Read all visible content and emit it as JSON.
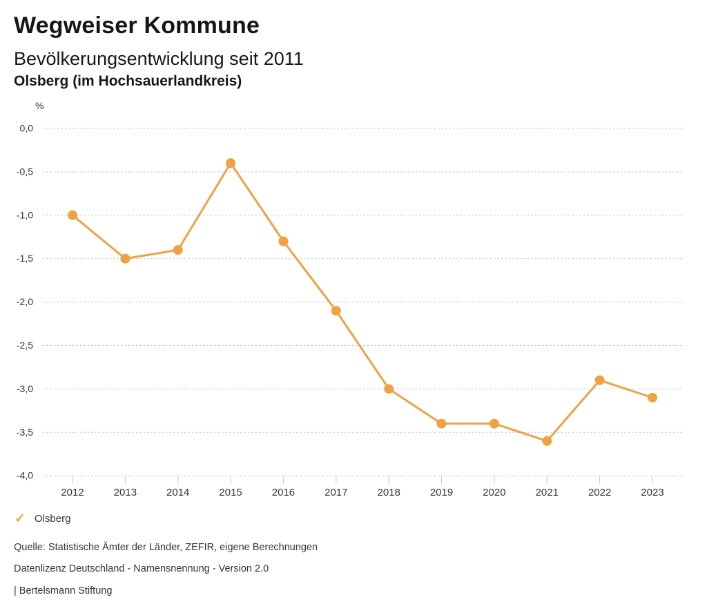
{
  "chart_data": {
    "type": "line",
    "title": "Wegweiser Kommune",
    "subtitle": "Bevölkerungsentwicklung seit 2011",
    "location": "Olsberg (im Hochsauerlandkreis)",
    "unit_label": "%",
    "categories": [
      "2012",
      "2013",
      "2014",
      "2015",
      "2016",
      "2017",
      "2018",
      "2019",
      "2020",
      "2021",
      "2022",
      "2023"
    ],
    "series": [
      {
        "name": "Olsberg",
        "color": "#F0A142",
        "values": [
          -1.0,
          -1.5,
          -1.4,
          -0.4,
          -1.3,
          -2.1,
          -3.0,
          -3.4,
          -3.4,
          -3.6,
          -2.9,
          -3.1
        ]
      }
    ],
    "ylim": [
      -4.0,
      0.0
    ],
    "ytick_step": 0.5,
    "ytick_labels": [
      "0,0",
      "-0,5",
      "-1,0",
      "-1,5",
      "-2,0",
      "-2,5",
      "-3,0",
      "-3,5",
      "-4,0"
    ],
    "grid": "horizontal-dotted",
    "legend_position": "bottom-left"
  },
  "legend": {
    "items": [
      {
        "label": "Olsberg",
        "marker": "check-icon",
        "color": "#F0A142"
      }
    ]
  },
  "footer": {
    "source": "Quelle: Statistische Ämter der Länder, ZEFIR, eigene Berechnungen",
    "license": "Datenlizenz Deutschland - Namensnennung - Version 2.0",
    "attribution": "| Bertelsmann Stiftung"
  },
  "colors": {
    "accent": "#F0A142",
    "grid": "#B8B8B8",
    "tick": "#C9C9C9",
    "text": "#333333"
  }
}
